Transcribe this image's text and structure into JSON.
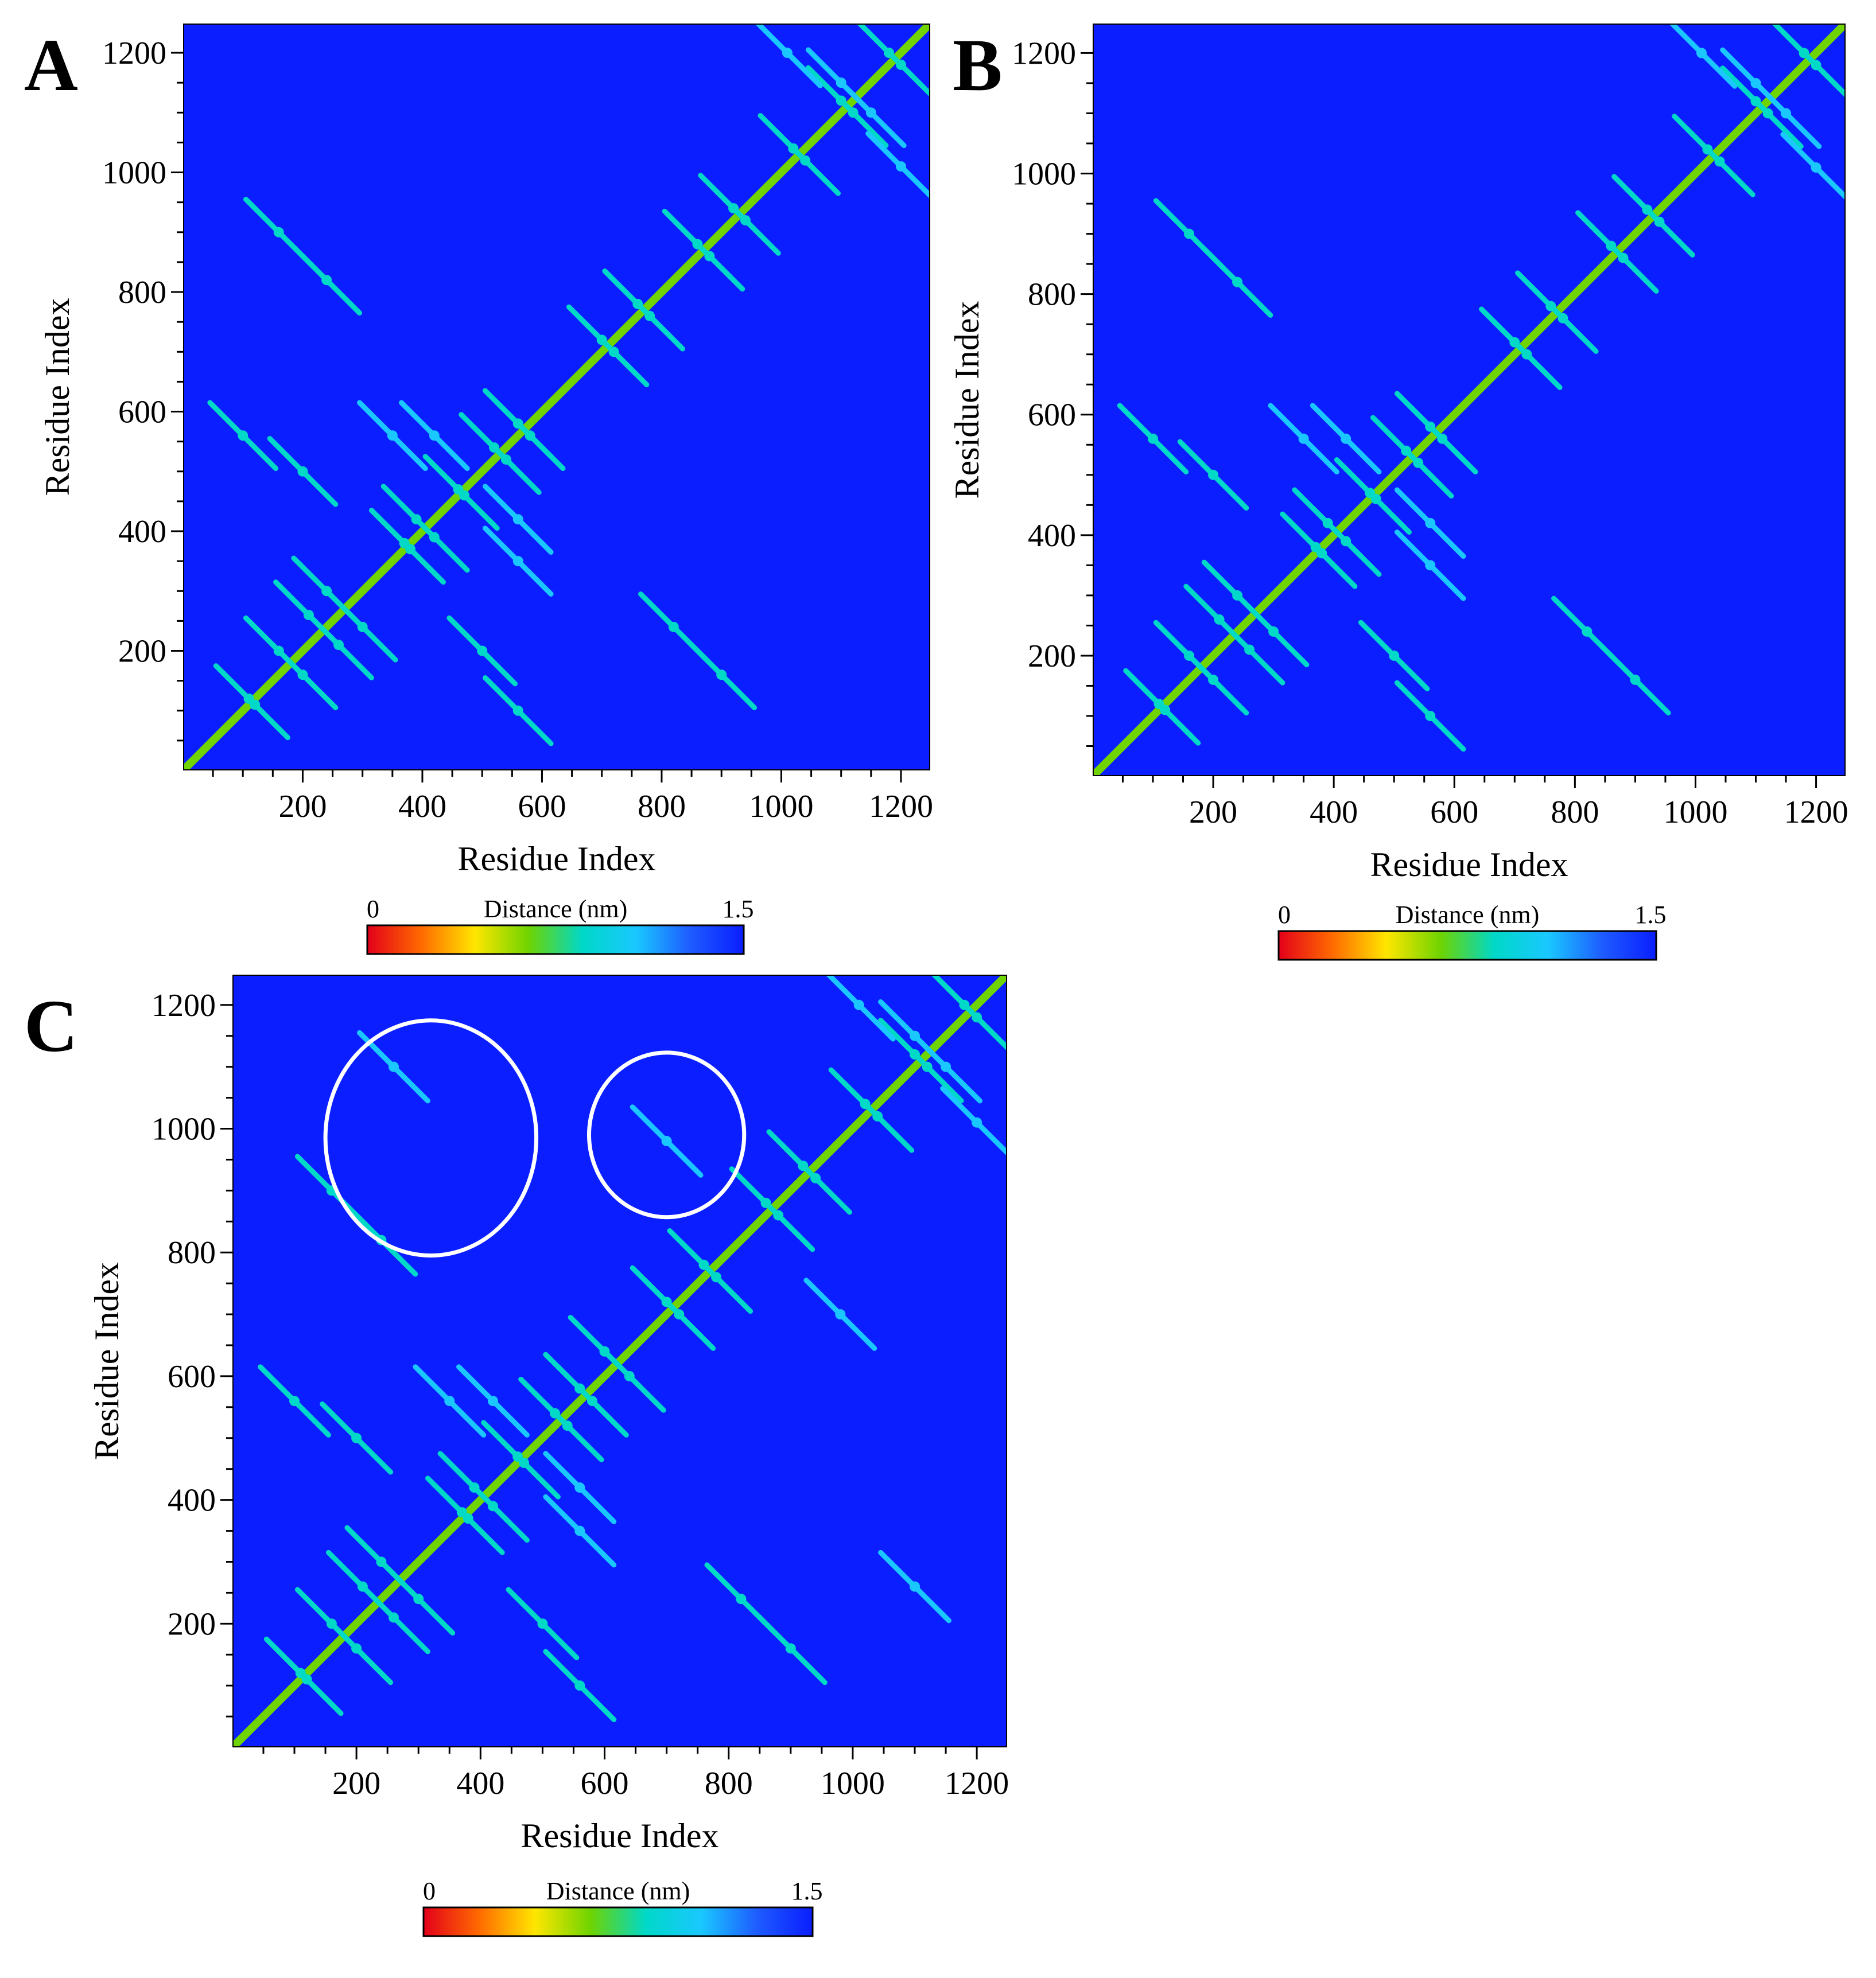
{
  "chart_data": [
    {
      "panel_label": "A",
      "type": "heatmap",
      "title": "",
      "xlabel": "Residue Index",
      "ylabel": "Residue Index",
      "xlim": [
        1,
        1248
      ],
      "ylim": [
        1,
        1248
      ],
      "xticks": [
        200,
        400,
        600,
        800,
        1000,
        1200
      ],
      "yticks": [
        200,
        400,
        600,
        800,
        1000,
        1200
      ],
      "grid": false,
      "colorbar": {
        "label": "Distance (nm)",
        "min": 0,
        "max": 1.5,
        "min_label": "0",
        "max_label": "1.5",
        "placement": "bottom"
      },
      "background_value": 1.5,
      "diagonal_value": 0.6,
      "contacts": [
        {
          "x": 120,
          "y": 110,
          "d": 0.9
        },
        {
          "x": 200,
          "y": 160,
          "d": 0.9
        },
        {
          "x": 260,
          "y": 210,
          "d": 0.9
        },
        {
          "x": 300,
          "y": 240,
          "d": 0.8
        },
        {
          "x": 380,
          "y": 370,
          "d": 0.9
        },
        {
          "x": 420,
          "y": 390,
          "d": 0.9
        },
        {
          "x": 470,
          "y": 460,
          "d": 0.8
        },
        {
          "x": 540,
          "y": 520,
          "d": 0.9
        },
        {
          "x": 580,
          "y": 560,
          "d": 0.8
        },
        {
          "x": 720,
          "y": 700,
          "d": 0.9
        },
        {
          "x": 780,
          "y": 760,
          "d": 0.8
        },
        {
          "x": 880,
          "y": 860,
          "d": 0.9
        },
        {
          "x": 940,
          "y": 920,
          "d": 0.9
        },
        {
          "x": 1040,
          "y": 1020,
          "d": 0.8
        },
        {
          "x": 1120,
          "y": 1100,
          "d": 0.9
        },
        {
          "x": 1200,
          "y": 1180,
          "d": 0.8
        },
        {
          "x": 240,
          "y": 820,
          "d": 0.9
        },
        {
          "x": 160,
          "y": 900,
          "d": 0.9
        },
        {
          "x": 500,
          "y": 200,
          "d": 0.9
        },
        {
          "x": 560,
          "y": 100,
          "d": 0.9
        },
        {
          "x": 1200,
          "y": 1010,
          "d": 1.0
        },
        {
          "x": 1100,
          "y": 1150,
          "d": 1.0
        },
        {
          "x": 560,
          "y": 420,
          "d": 1.0
        },
        {
          "x": 350,
          "y": 560,
          "d": 1.0
        }
      ],
      "annotations": []
    },
    {
      "panel_label": "B",
      "type": "heatmap",
      "title": "",
      "xlabel": "Residue Index",
      "ylabel": "Residue Index",
      "xlim": [
        1,
        1248
      ],
      "ylim": [
        1,
        1248
      ],
      "xticks": [
        200,
        400,
        600,
        800,
        1000,
        1200
      ],
      "yticks": [
        200,
        400,
        600,
        800,
        1000,
        1200
      ],
      "grid": false,
      "colorbar": {
        "label": "Distance (nm)",
        "min": 0,
        "max": 1.5,
        "min_label": "0",
        "max_label": "1.5",
        "placement": "bottom"
      },
      "background_value": 1.5,
      "diagonal_value": 0.6,
      "contacts": [
        {
          "x": 120,
          "y": 110,
          "d": 0.9
        },
        {
          "x": 200,
          "y": 160,
          "d": 0.9
        },
        {
          "x": 260,
          "y": 210,
          "d": 0.9
        },
        {
          "x": 300,
          "y": 240,
          "d": 0.8
        },
        {
          "x": 380,
          "y": 370,
          "d": 0.9
        },
        {
          "x": 420,
          "y": 390,
          "d": 0.9
        },
        {
          "x": 470,
          "y": 460,
          "d": 0.8
        },
        {
          "x": 540,
          "y": 520,
          "d": 0.9
        },
        {
          "x": 580,
          "y": 560,
          "d": 0.8
        },
        {
          "x": 720,
          "y": 700,
          "d": 0.9
        },
        {
          "x": 780,
          "y": 760,
          "d": 0.8
        },
        {
          "x": 880,
          "y": 860,
          "d": 0.9
        },
        {
          "x": 940,
          "y": 920,
          "d": 0.9
        },
        {
          "x": 1040,
          "y": 1020,
          "d": 0.8
        },
        {
          "x": 1120,
          "y": 1100,
          "d": 0.9
        },
        {
          "x": 1200,
          "y": 1180,
          "d": 0.8
        },
        {
          "x": 240,
          "y": 820,
          "d": 0.9
        },
        {
          "x": 160,
          "y": 900,
          "d": 0.9
        },
        {
          "x": 500,
          "y": 200,
          "d": 0.9
        },
        {
          "x": 560,
          "y": 100,
          "d": 0.9
        },
        {
          "x": 1200,
          "y": 1010,
          "d": 1.0
        },
        {
          "x": 1100,
          "y": 1150,
          "d": 1.0
        },
        {
          "x": 560,
          "y": 420,
          "d": 1.0
        },
        {
          "x": 350,
          "y": 560,
          "d": 1.0
        }
      ],
      "annotations": []
    },
    {
      "panel_label": "C",
      "type": "heatmap",
      "title": "",
      "xlabel": "Residue Index",
      "ylabel": "Residue Index",
      "xlim": [
        1,
        1248
      ],
      "ylim": [
        1,
        1248
      ],
      "xticks": [
        200,
        400,
        600,
        800,
        1000,
        1200
      ],
      "yticks": [
        200,
        400,
        600,
        800,
        1000,
        1200
      ],
      "grid": false,
      "colorbar": {
        "label": "Distance (nm)",
        "min": 0,
        "max": 1.5,
        "min_label": "0",
        "max_label": "1.5",
        "placement": "bottom"
      },
      "background_value": 1.5,
      "diagonal_value": 0.6,
      "contacts": [
        {
          "x": 120,
          "y": 110,
          "d": 0.9
        },
        {
          "x": 200,
          "y": 160,
          "d": 0.9
        },
        {
          "x": 260,
          "y": 210,
          "d": 0.9
        },
        {
          "x": 300,
          "y": 240,
          "d": 0.8
        },
        {
          "x": 380,
          "y": 370,
          "d": 0.9
        },
        {
          "x": 420,
          "y": 390,
          "d": 0.9
        },
        {
          "x": 470,
          "y": 460,
          "d": 0.8
        },
        {
          "x": 540,
          "y": 520,
          "d": 0.9
        },
        {
          "x": 580,
          "y": 560,
          "d": 0.8
        },
        {
          "x": 720,
          "y": 700,
          "d": 0.9
        },
        {
          "x": 780,
          "y": 760,
          "d": 0.8
        },
        {
          "x": 880,
          "y": 860,
          "d": 0.9
        },
        {
          "x": 940,
          "y": 920,
          "d": 0.9
        },
        {
          "x": 1040,
          "y": 1020,
          "d": 0.8
        },
        {
          "x": 1120,
          "y": 1100,
          "d": 0.9
        },
        {
          "x": 1200,
          "y": 1180,
          "d": 0.8
        },
        {
          "x": 240,
          "y": 820,
          "d": 0.9
        },
        {
          "x": 160,
          "y": 900,
          "d": 0.9
        },
        {
          "x": 500,
          "y": 200,
          "d": 0.9
        },
        {
          "x": 560,
          "y": 100,
          "d": 0.9
        },
        {
          "x": 1200,
          "y": 1010,
          "d": 1.0
        },
        {
          "x": 1100,
          "y": 1150,
          "d": 1.0
        },
        {
          "x": 560,
          "y": 420,
          "d": 1.0
        },
        {
          "x": 350,
          "y": 560,
          "d": 1.0
        },
        {
          "x": 600,
          "y": 640,
          "d": 0.9
        },
        {
          "x": 700,
          "y": 980,
          "d": 1.0
        },
        {
          "x": 260,
          "y": 1100,
          "d": 1.1
        }
      ],
      "annotations": [
        {
          "shape": "ellipse",
          "cx": 320,
          "cy": 985,
          "rx": 170,
          "ry": 190,
          "color": "#ffffff"
        },
        {
          "shape": "ellipse",
          "cx": 700,
          "cy": 990,
          "rx": 125,
          "ry": 133,
          "color": "#ffffff"
        }
      ]
    }
  ],
  "colors": {
    "background": "#0a1eff",
    "diagonal": "#8ae24c",
    "contact": "#2ed7d7",
    "colormap": [
      "#e3001a",
      "#ff6a00",
      "#ffe600",
      "#6fd400",
      "#00d8c8",
      "#1ac8ff",
      "#1e5cff",
      "#0a1eff"
    ],
    "annotation": "#ffffff",
    "axis": "#000000"
  }
}
